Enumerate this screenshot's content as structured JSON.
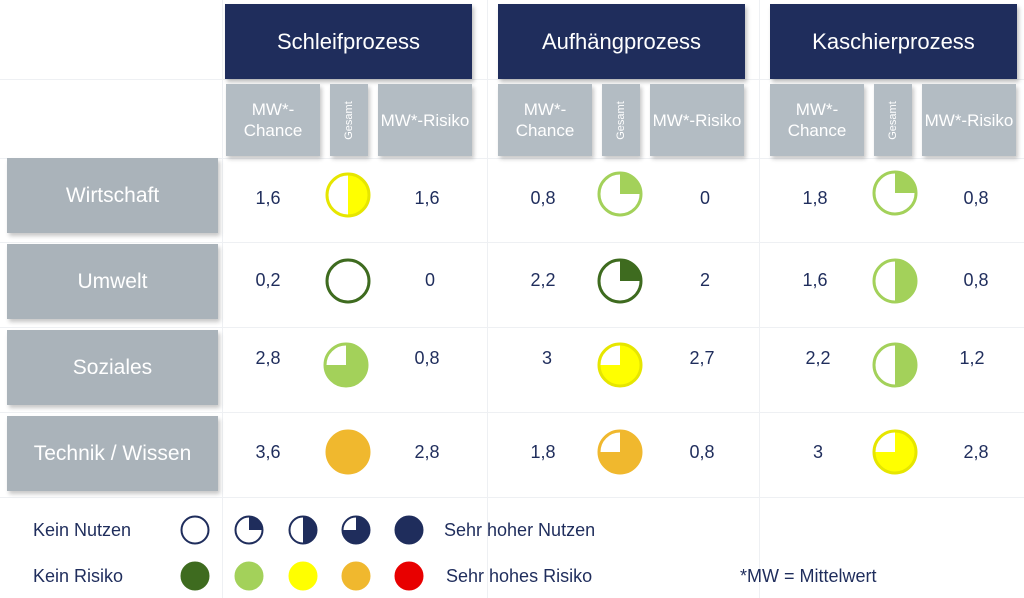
{
  "processes": [
    {
      "name": "Schleifprozess",
      "chance_label": "MW*-Chance",
      "gesamt_label": "Gesamt",
      "risiko_label": "MW*-Risiko"
    },
    {
      "name": "Aufhängprozess",
      "chance_label": "MW*-Chance",
      "gesamt_label": "Gesamt",
      "risiko_label": "MW*-Risiko"
    },
    {
      "name": "Kaschierprozess",
      "chance_label": "MW*-Chance",
      "gesamt_label": "Gesamt",
      "risiko_label": "MW*-Risiko"
    }
  ],
  "rows": [
    {
      "label": "Wirtschaft",
      "cells": [
        {
          "chance": "1,6",
          "risiko": "1,6",
          "fill": 0.5,
          "color": "#ffff00",
          "dark": "#e6e600"
        },
        {
          "chance": "0,8",
          "risiko": "0",
          "fill": 0.25,
          "color": "#a3d15a",
          "dark": "#a3d15a"
        },
        {
          "chance": "1,8",
          "risiko": "0,8",
          "fill": 0.25,
          "color": "#a3d15a",
          "dark": "#a3d15a"
        }
      ]
    },
    {
      "label": "Umwelt",
      "cells": [
        {
          "chance": "0,2",
          "risiko": "0",
          "fill": 0,
          "color": "#3e6b1f",
          "dark": "#3e6b1f"
        },
        {
          "chance": "2,2",
          "risiko": "2",
          "fill": 0.25,
          "color": "#3e6b1f",
          "dark": "#3e6b1f"
        },
        {
          "chance": "1,6",
          "risiko": "0,8",
          "fill": 0.5,
          "color": "#a3d15a",
          "dark": "#a3d15a"
        }
      ]
    },
    {
      "label": "Soziales",
      "cells": [
        {
          "chance": "2,8",
          "risiko": "0,8",
          "fill": 0.75,
          "color": "#a3d15a",
          "dark": "#a3d15a"
        },
        {
          "chance": "3",
          "risiko": "2,7",
          "fill": 0.75,
          "color": "#ffff00",
          "dark": "#e6e600"
        },
        {
          "chance": "2,2",
          "risiko": "1,2",
          "fill": 0.5,
          "color": "#a3d15a",
          "dark": "#a3d15a"
        }
      ]
    },
    {
      "label": "Technik / Wissen",
      "cells": [
        {
          "chance": "3,6",
          "risiko": "2,8",
          "fill": 1,
          "color": "#f0b82e",
          "dark": "#f0b82e"
        },
        {
          "chance": "1,8",
          "risiko": "0,8",
          "fill": 0.75,
          "color": "#f0b82e",
          "dark": "#f0b82e"
        },
        {
          "chance": "3",
          "risiko": "2,8",
          "fill": 0.75,
          "color": "#ffff00",
          "dark": "#e6e600"
        }
      ]
    }
  ],
  "legend": {
    "nutzen": {
      "low": "Kein Nutzen",
      "high": "Sehr hoher Nutzen",
      "color": "#1f2d5c",
      "levels": [
        0,
        0.25,
        0.5,
        0.75,
        1
      ]
    },
    "risiko": {
      "low": "Kein Risiko",
      "high": "Sehr hohes Risiko",
      "colors": [
        "#3e6b1f",
        "#a3d15a",
        "#ffff00",
        "#f0b82e",
        "#e80000"
      ]
    },
    "footnote": "*MW = Mittelwert"
  }
}
